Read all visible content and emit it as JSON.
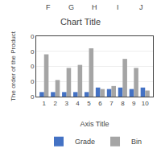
{
  "chart_data": {
    "type": "bar",
    "title": "Chart Title",
    "xlabel": "Axis Title",
    "ylabel": "The order of the Product",
    "annotations": [
      "F",
      "G",
      "H",
      "I",
      "J"
    ],
    "x": [
      1,
      2,
      3,
      4,
      5,
      6,
      7,
      8,
      9,
      10
    ],
    "series": [
      {
        "name": "Grade",
        "color": "#4472c4",
        "values": [
          0.03,
          0.03,
          0.03,
          0.03,
          0.03,
          0.06,
          0.05,
          0.06,
          0.05,
          0.06
        ]
      },
      {
        "name": "Bin",
        "color": "#a5a5a5",
        "values": [
          0.28,
          0.11,
          0.19,
          0.21,
          0.32,
          0.05,
          0.07,
          0.25,
          0.19,
          0.04
        ]
      }
    ],
    "xlim": [
      0.3,
      10.7
    ],
    "xticks": [
      1,
      2,
      3,
      4,
      5,
      6,
      7,
      8,
      9,
      10
    ],
    "ylim": [
      0,
      0.4
    ],
    "yticks": [
      0,
      {
        "value": 0.1,
        "label": "0"
      },
      {
        "value": 0.2,
        "label": "0"
      },
      {
        "value": 0.3,
        "label": "0"
      },
      {
        "value": 0.4,
        "label": "0"
      }
    ],
    "grid": true,
    "legend": "bottom"
  }
}
